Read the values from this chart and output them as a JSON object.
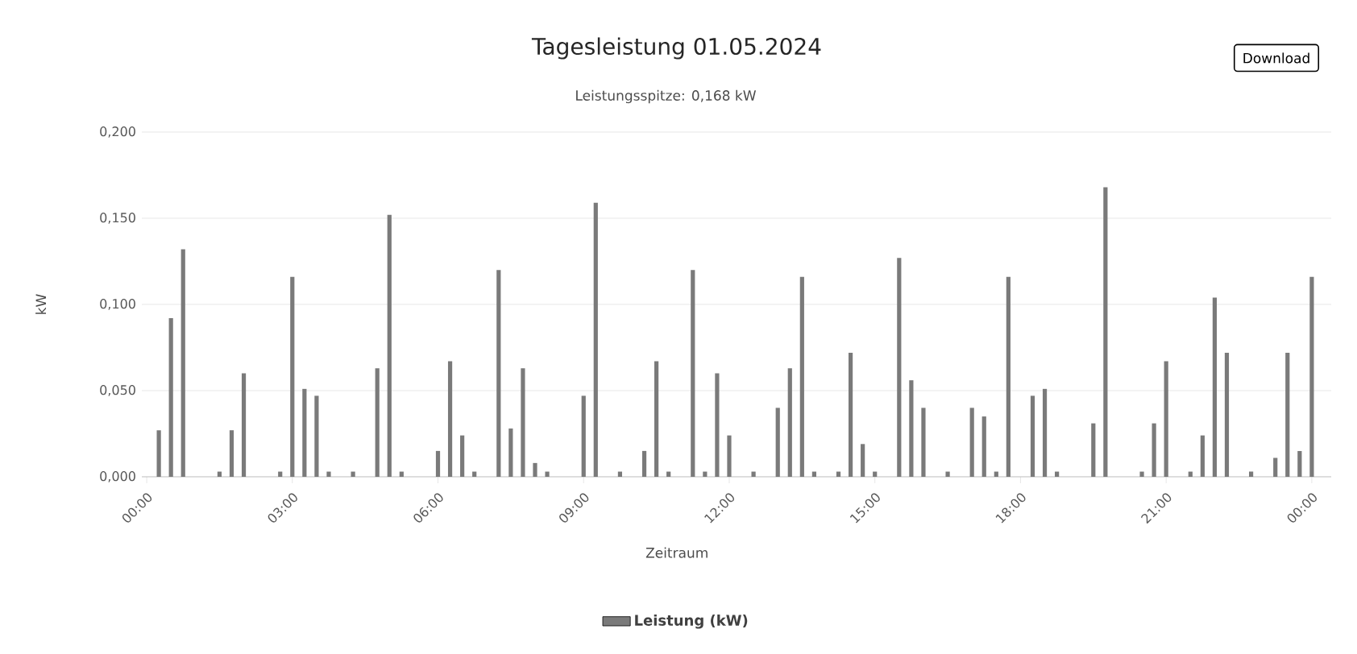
{
  "chart_data": {
    "type": "bar",
    "title": "Tagesleistung 01.05.2024",
    "subtitle": "Leistungsspitze: 0,168 kW",
    "xlabel": "Zeitraum",
    "ylabel": "kW",
    "annotations": [
      "Download"
    ],
    "x": [
      0.25,
      0.5,
      0.75,
      1.5,
      1.75,
      2.0,
      2.75,
      3.0,
      3.25,
      3.5,
      3.75,
      4.25,
      4.75,
      5.0,
      5.25,
      6.0,
      6.25,
      6.5,
      6.75,
      7.25,
      7.5,
      7.75,
      8.0,
      8.25,
      9.0,
      9.25,
      9.75,
      10.25,
      10.5,
      10.75,
      11.25,
      11.5,
      11.75,
      12.0,
      12.5,
      13.0,
      13.25,
      13.5,
      13.75,
      14.25,
      14.5,
      14.75,
      15.0,
      15.5,
      15.75,
      16.0,
      16.5,
      17.0,
      17.25,
      17.5,
      17.75,
      18.25,
      18.5,
      18.75,
      19.5,
      19.75,
      20.5,
      20.75,
      21.0,
      21.5,
      21.75,
      22.0,
      22.25,
      22.75,
      23.25,
      23.5,
      23.75,
      24.0
    ],
    "series": [
      {
        "name": "Leistung (kW)",
        "color": "#7a7a7a",
        "values": [
          0.027,
          0.092,
          0.132,
          0.003,
          0.027,
          0.06,
          0.003,
          0.116,
          0.051,
          0.047,
          0.003,
          0.003,
          0.063,
          0.152,
          0.003,
          0.015,
          0.067,
          0.024,
          0.003,
          0.12,
          0.028,
          0.063,
          0.008,
          0.003,
          0.047,
          0.159,
          0.003,
          0.015,
          0.067,
          0.003,
          0.12,
          0.003,
          0.06,
          0.024,
          0.003,
          0.04,
          0.063,
          0.116,
          0.003,
          0.003,
          0.072,
          0.019,
          0.003,
          0.127,
          0.056,
          0.04,
          0.003,
          0.04,
          0.035,
          0.003,
          0.116,
          0.047,
          0.051,
          0.003,
          0.031,
          0.168,
          0.003,
          0.031,
          0.067,
          0.003,
          0.024,
          0.104,
          0.072,
          0.003,
          0.011,
          0.072,
          0.015,
          0.116
        ]
      }
    ],
    "xlim": [
      -0.1,
      24.4
    ],
    "ylim": [
      0,
      0.2
    ],
    "xticks": [
      {
        "value": 0,
        "label": "00:00"
      },
      {
        "value": 3,
        "label": "03:00"
      },
      {
        "value": 6,
        "label": "06:00"
      },
      {
        "value": 9,
        "label": "09:00"
      },
      {
        "value": 12,
        "label": "12:00"
      },
      {
        "value": 15,
        "label": "15:00"
      },
      {
        "value": 18,
        "label": "18:00"
      },
      {
        "value": 21,
        "label": "21:00"
      },
      {
        "value": 24,
        "label": "00:00"
      }
    ],
    "yticks": [
      {
        "value": 0,
        "label": "0,000"
      },
      {
        "value": 0.05,
        "label": "0,050"
      },
      {
        "value": 0.1,
        "label": "0,100"
      },
      {
        "value": 0.15,
        "label": "0,150"
      },
      {
        "value": 0.2,
        "label": "0,200"
      }
    ],
    "grid": "y",
    "legend": "bottom"
  }
}
